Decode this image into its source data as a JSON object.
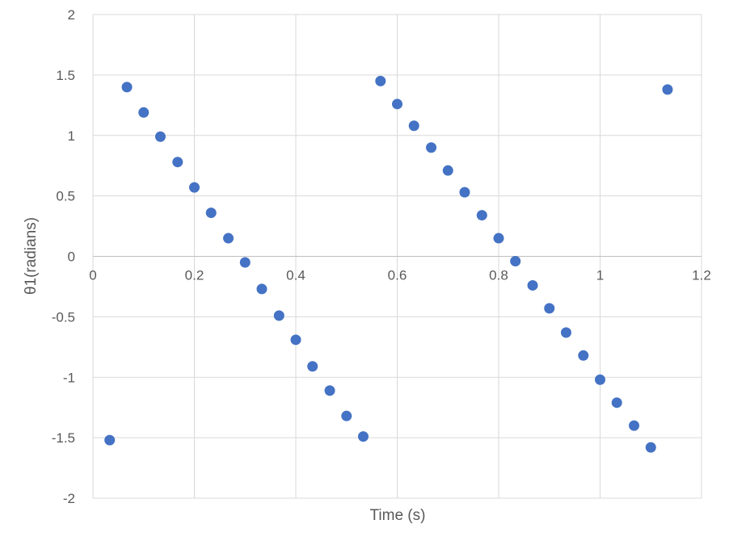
{
  "chart_data": {
    "type": "scatter",
    "title": "",
    "xlabel": "Time (s)",
    "ylabel": "θ1(radians)",
    "xlim": [
      0,
      1.2
    ],
    "ylim": [
      -2,
      2
    ],
    "x_ticks": [
      "0",
      "0.2",
      "0.4",
      "0.6",
      "0.8",
      "1",
      "1.2"
    ],
    "y_ticks": [
      "2",
      "1.5",
      "1",
      "0.5",
      "0",
      "-0.5",
      "-1",
      "-1.5",
      "-2"
    ],
    "grid": true,
    "legend": "none",
    "marker_color": "#4472C4",
    "points": [
      {
        "x": 0.033,
        "y": -1.52
      },
      {
        "x": 0.067,
        "y": 1.4
      },
      {
        "x": 0.1,
        "y": 1.19
      },
      {
        "x": 0.133,
        "y": 0.99
      },
      {
        "x": 0.167,
        "y": 0.78
      },
      {
        "x": 0.2,
        "y": 0.57
      },
      {
        "x": 0.233,
        "y": 0.36
      },
      {
        "x": 0.267,
        "y": 0.15
      },
      {
        "x": 0.3,
        "y": -0.05
      },
      {
        "x": 0.333,
        "y": -0.27
      },
      {
        "x": 0.367,
        "y": -0.49
      },
      {
        "x": 0.4,
        "y": -0.69
      },
      {
        "x": 0.433,
        "y": -0.91
      },
      {
        "x": 0.467,
        "y": -1.11
      },
      {
        "x": 0.5,
        "y": -1.32
      },
      {
        "x": 0.533,
        "y": -1.49
      },
      {
        "x": 0.567,
        "y": 1.45
      },
      {
        "x": 0.6,
        "y": 1.26
      },
      {
        "x": 0.633,
        "y": 1.08
      },
      {
        "x": 0.667,
        "y": 0.9
      },
      {
        "x": 0.7,
        "y": 0.71
      },
      {
        "x": 0.733,
        "y": 0.53
      },
      {
        "x": 0.767,
        "y": 0.34
      },
      {
        "x": 0.8,
        "y": 0.15
      },
      {
        "x": 0.833,
        "y": -0.04
      },
      {
        "x": 0.867,
        "y": -0.24
      },
      {
        "x": 0.9,
        "y": -0.43
      },
      {
        "x": 0.933,
        "y": -0.63
      },
      {
        "x": 0.967,
        "y": -0.82
      },
      {
        "x": 1.0,
        "y": -1.02
      },
      {
        "x": 1.033,
        "y": -1.21
      },
      {
        "x": 1.067,
        "y": -1.4
      },
      {
        "x": 1.1,
        "y": -1.58
      },
      {
        "x": 1.133,
        "y": 1.38
      }
    ]
  }
}
